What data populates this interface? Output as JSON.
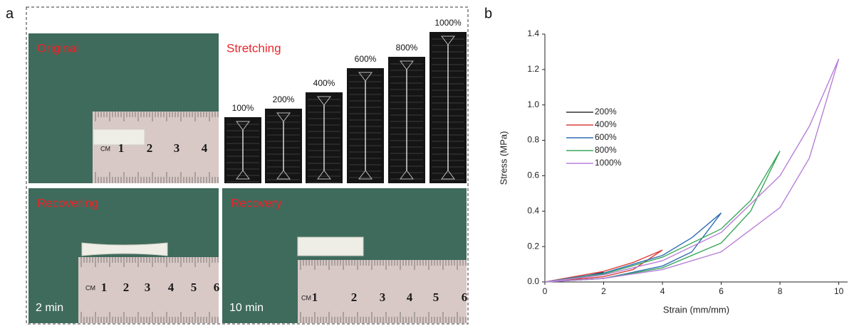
{
  "panel_a": {
    "letter": "a",
    "photos": [
      {
        "label": "Original",
        "ruler_unit": "CM",
        "ruler_numbers": [
          "1",
          "2",
          "3",
          "4"
        ]
      },
      {
        "label": "Recovering",
        "time": "2 min",
        "ruler_unit": "CM",
        "ruler_numbers": [
          "1",
          "2",
          "3",
          "4",
          "5",
          "6"
        ]
      },
      {
        "label": "Recovery",
        "time": "10 min",
        "ruler_unit": "CM",
        "ruler_numbers": [
          "1",
          "2",
          "3",
          "4",
          "5",
          "6"
        ]
      }
    ],
    "stretching": {
      "label": "Stretching",
      "strains": [
        "100%",
        "200%",
        "400%",
        "600%",
        "800%",
        "1000%"
      ]
    }
  },
  "chart_data": {
    "type": "line",
    "panel_letter": "b",
    "x_label": "Strain (mm/mm)",
    "y_label": "Stress (MPa)",
    "xlim": [
      0,
      10.3
    ],
    "ylim": [
      0,
      1.4
    ],
    "xticks": [
      0,
      2,
      4,
      6,
      8,
      10
    ],
    "yticks": [
      {
        "value": 0,
        "label": "0.0"
      },
      0.2,
      0.4,
      0.6,
      0.8,
      {
        "value": 1,
        "label": "1.0"
      },
      1.2,
      1.4
    ],
    "legend": "upper left",
    "series": [
      {
        "name": "200%",
        "color": "#333333",
        "x": [
          0,
          1,
          2,
          1,
          0
        ],
        "values": [
          0,
          0.02,
          0.055,
          0.015,
          0
        ]
      },
      {
        "name": "400%",
        "color": "#d9403a",
        "x": [
          0,
          2,
          3,
          4,
          3,
          2,
          0
        ],
        "values": [
          0,
          0.06,
          0.11,
          0.18,
          0.07,
          0.03,
          0
        ]
      },
      {
        "name": "600%",
        "color": "#2f6db5",
        "x": [
          0,
          2,
          4,
          5,
          6,
          5,
          4,
          2,
          0
        ],
        "values": [
          0,
          0.05,
          0.15,
          0.25,
          0.39,
          0.17,
          0.09,
          0.02,
          0
        ]
      },
      {
        "name": "800%",
        "color": "#3aa85c",
        "x": [
          0,
          2,
          4,
          6,
          7,
          8,
          7,
          6,
          4,
          2,
          0
        ],
        "values": [
          0,
          0.045,
          0.14,
          0.3,
          0.46,
          0.74,
          0.4,
          0.22,
          0.08,
          0.02,
          0
        ]
      },
      {
        "name": "1000%",
        "color": "#b77fd8",
        "x": [
          0,
          2,
          4,
          6,
          8,
          9,
          10,
          9,
          8,
          6,
          4,
          2,
          0
        ],
        "values": [
          0,
          0.04,
          0.12,
          0.28,
          0.6,
          0.88,
          1.26,
          0.7,
          0.42,
          0.17,
          0.07,
          0.02,
          0
        ]
      }
    ]
  }
}
